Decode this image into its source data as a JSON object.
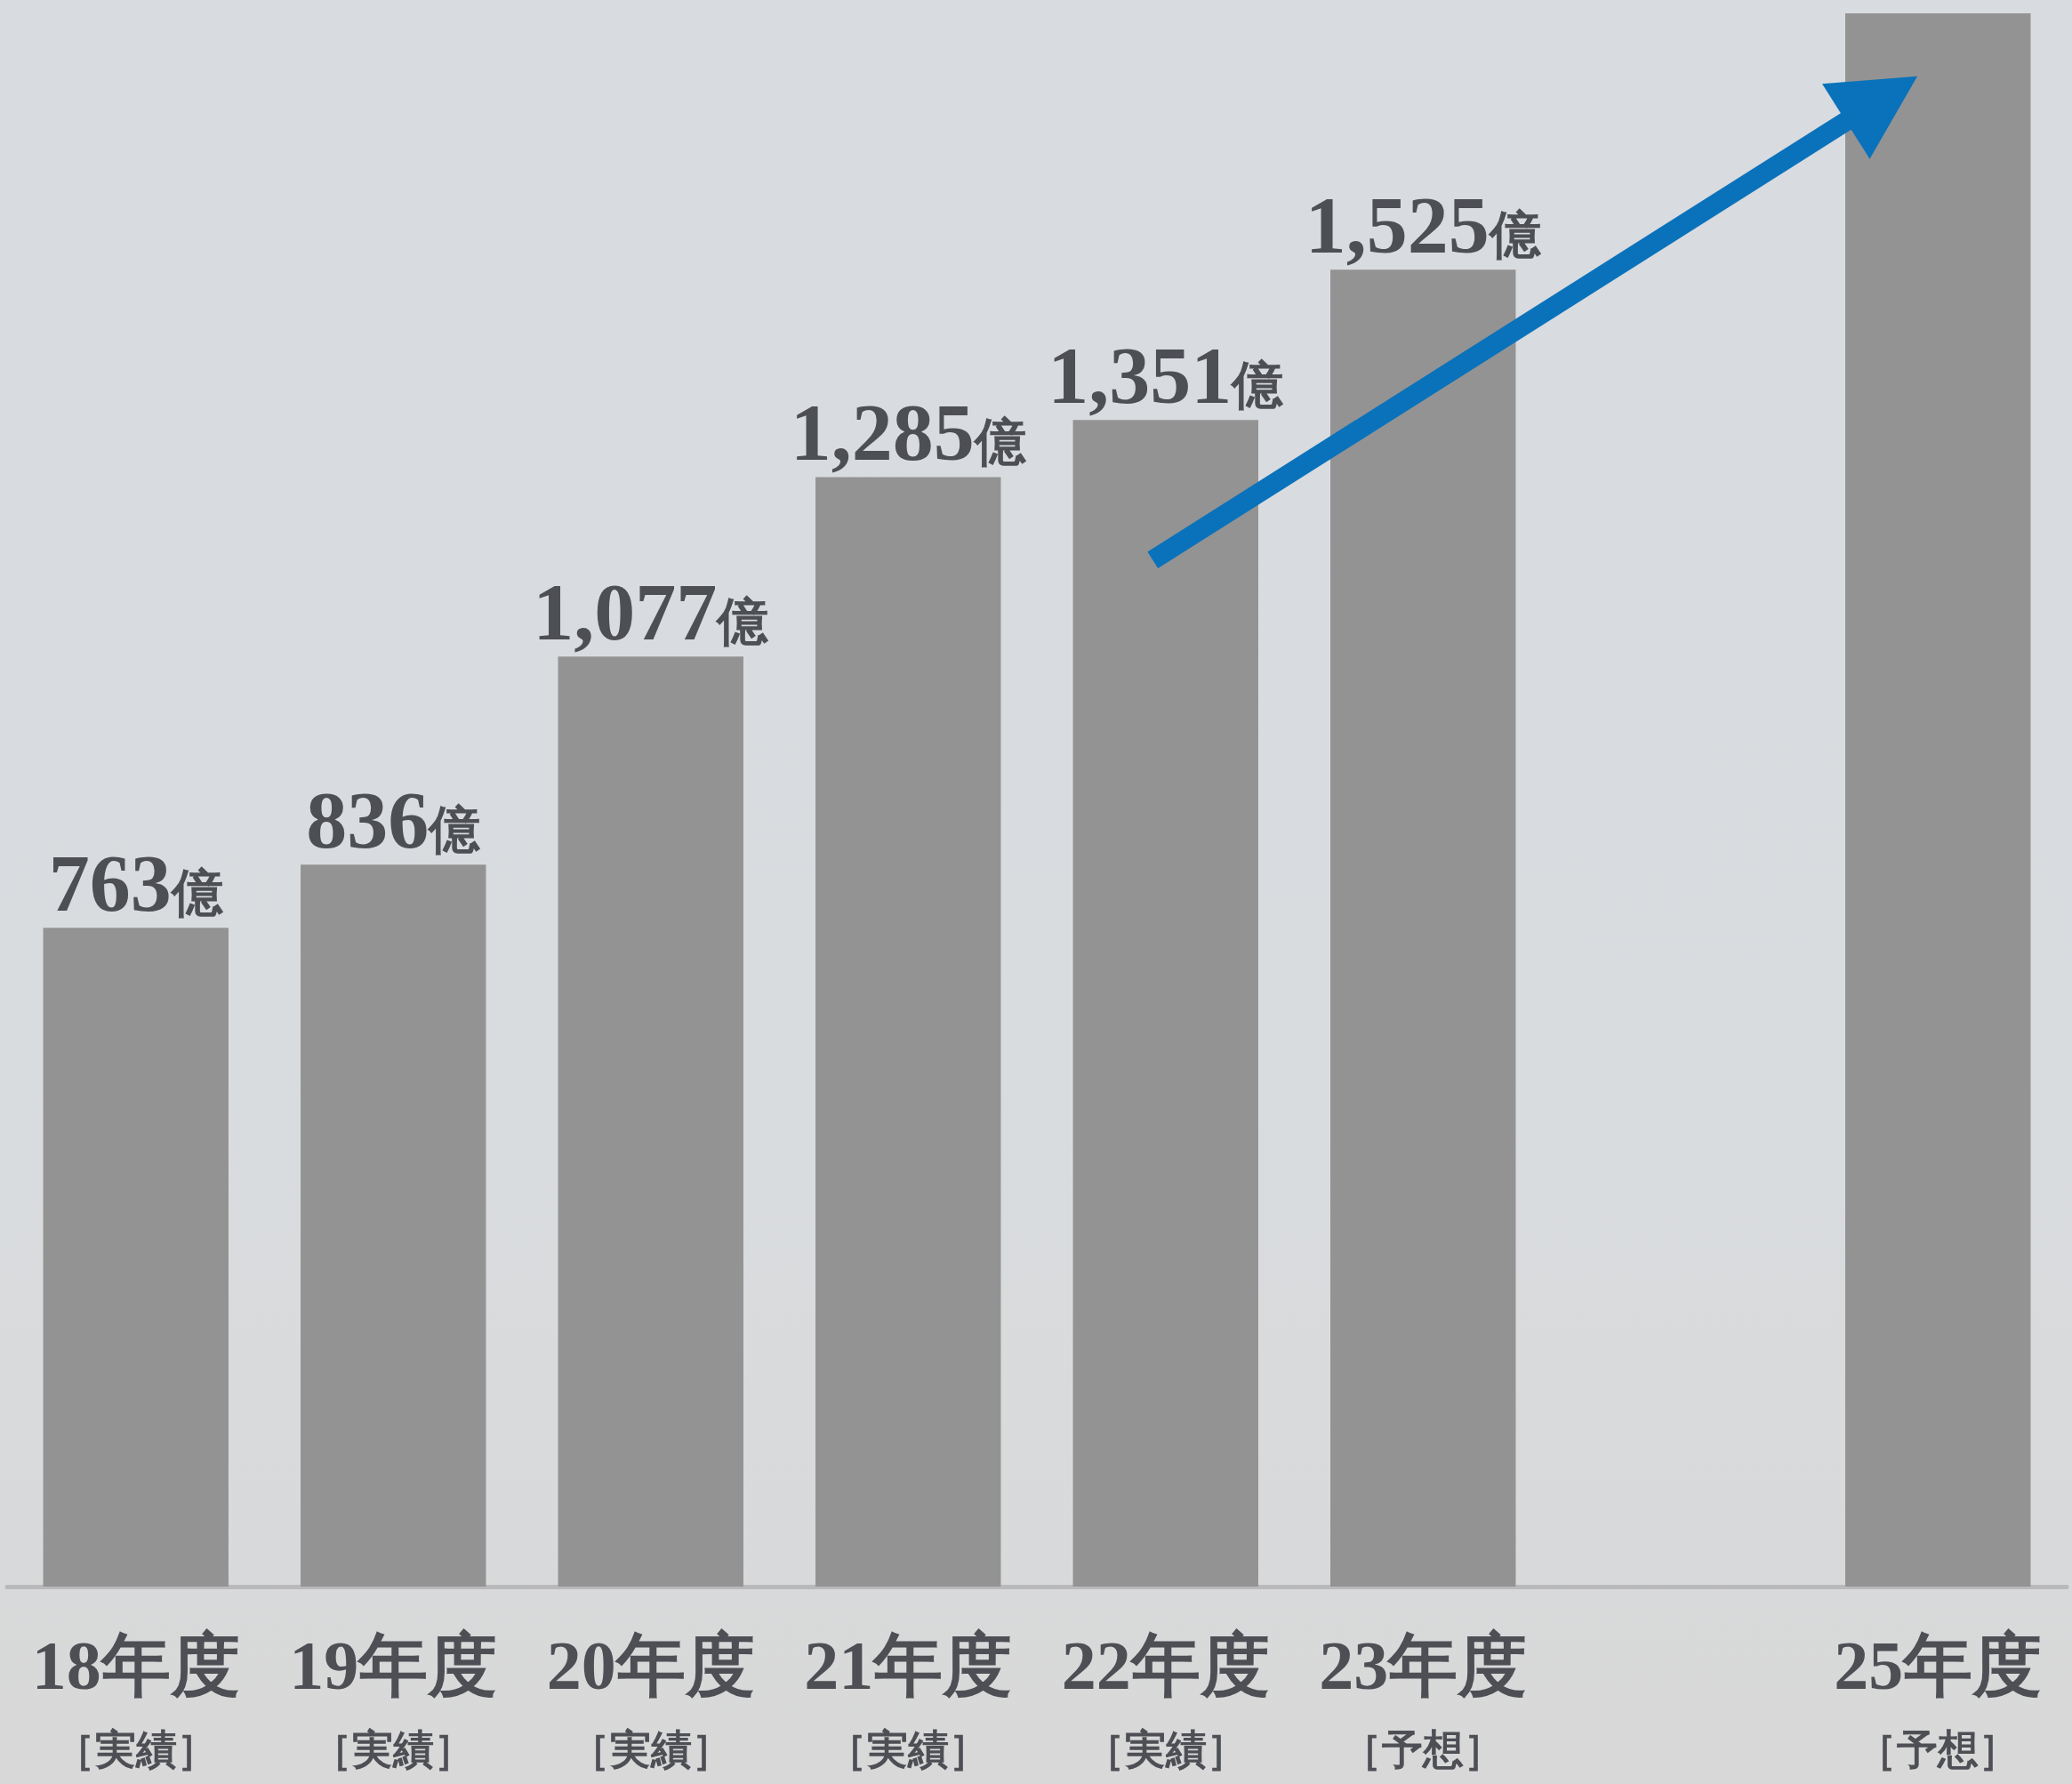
{
  "chart_data": {
    "type": "bar",
    "categories": [
      "18年度［実績］",
      "19年度［実績］",
      "20年度［実績］",
      "21年度［実績］",
      "22年度［実績］",
      "23年度［予想］",
      null,
      "25年度［予想］"
    ],
    "values": [
      763,
      836,
      1077,
      1285,
      1351,
      1525,
      null,
      1822
    ],
    "color": "#939393",
    "value_labels": [
      "763億",
      "836億",
      "1,077億",
      "1,285億",
      "1,351億",
      "1,525億",
      null,
      null
    ]
  }
}
